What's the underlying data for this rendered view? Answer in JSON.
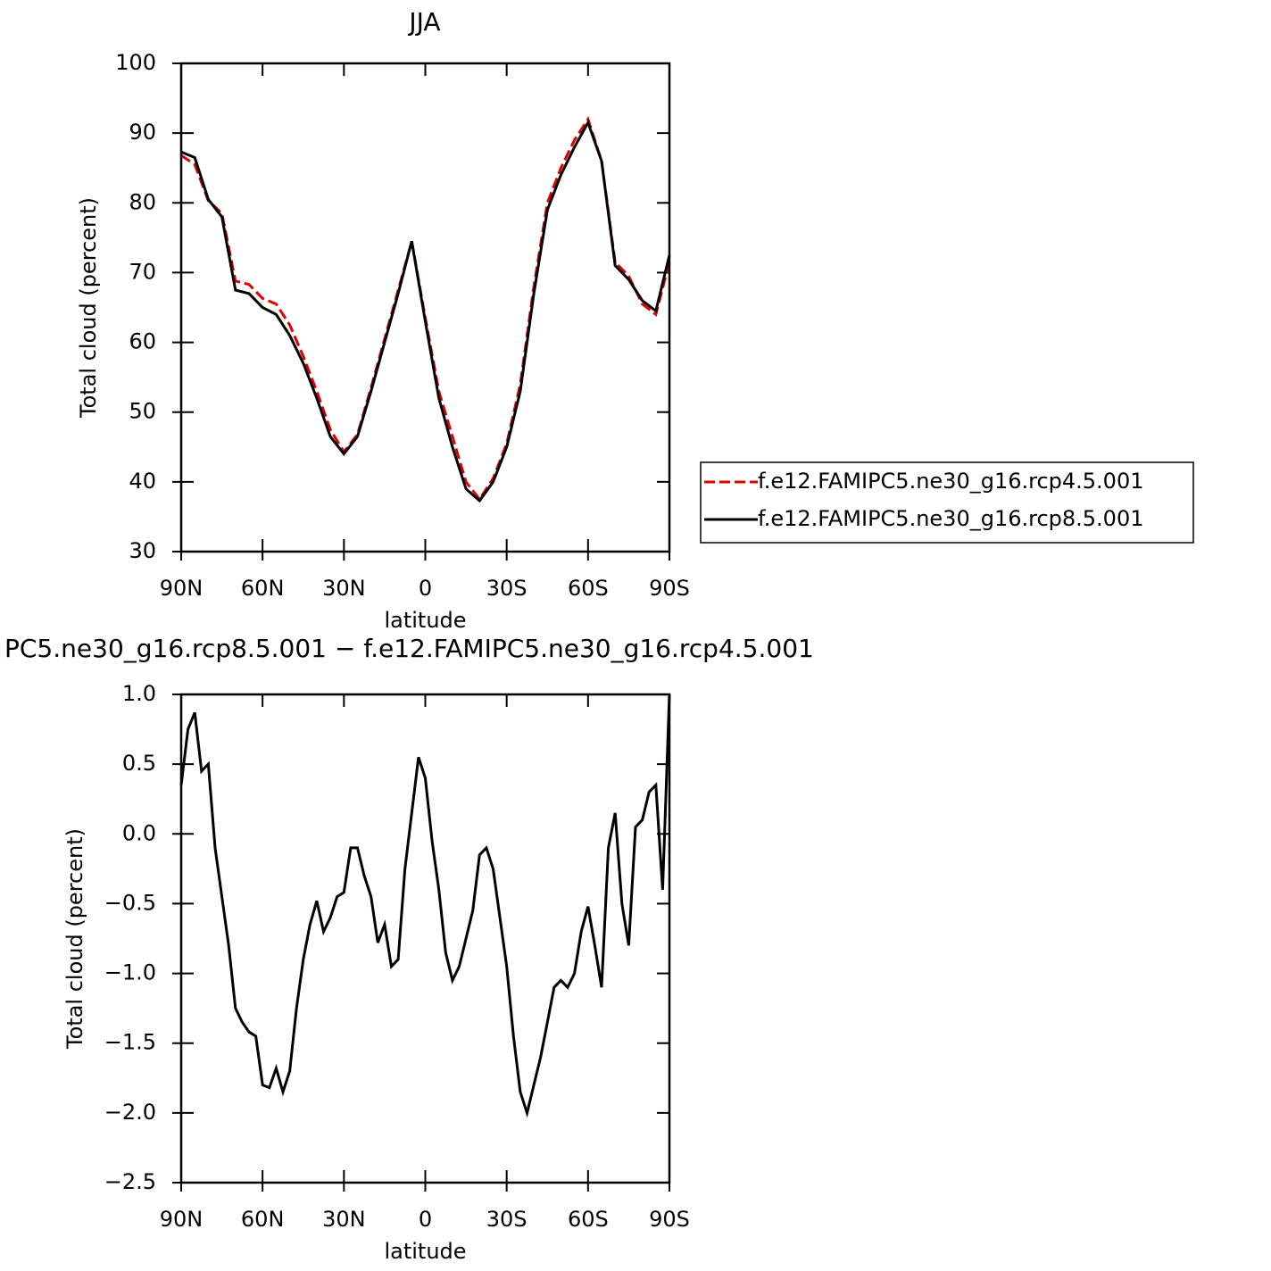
{
  "chart_data": [
    {
      "type": "line",
      "title": "JJA",
      "xlabel": "latitude",
      "ylabel": "Total cloud (percent)",
      "x": [
        90,
        85,
        80,
        75,
        70,
        65,
        60,
        55,
        50,
        45,
        40,
        35,
        30,
        25,
        20,
        15,
        10,
        5,
        0,
        -5,
        -10,
        -15,
        -20,
        -25,
        -30,
        -35,
        -40,
        -45,
        -50,
        -55,
        -60,
        -65,
        -70,
        -75,
        -80,
        -85,
        -90
      ],
      "series": [
        {
          "name": "f.e12.FAMIPC5.ne30_g16.rcp4.5.001",
          "color": "#e00000",
          "dash": true,
          "values": [
            86.8,
            85.5,
            80.3,
            78.5,
            68.8,
            68.3,
            66.3,
            65.5,
            62.5,
            58,
            53,
            47.5,
            44.3,
            46.8,
            53.5,
            60.5,
            67.5,
            74.5,
            63.5,
            53,
            46.5,
            40,
            37.5,
            40.5,
            45.5,
            54,
            68,
            80,
            85,
            89,
            92,
            86,
            71.5,
            69.5,
            65.5,
            64,
            71.5
          ]
        },
        {
          "name": "f.e12.FAMIPC5.ne30_g16.rcp8.5.001",
          "color": "#000000",
          "dash": false,
          "values": [
            87.3,
            86.5,
            80.5,
            78,
            67.5,
            67,
            65,
            64,
            61,
            57,
            52,
            46.5,
            44,
            46.5,
            53,
            60,
            67,
            74.5,
            63,
            52,
            45,
            39,
            37.3,
            40,
            45,
            53,
            67,
            79,
            84,
            88,
            91.5,
            86,
            71,
            69,
            66,
            64.5,
            72.5
          ]
        }
      ],
      "xlim": [
        90,
        -90
      ],
      "xticks": [
        {
          "value": 90,
          "label": "90N"
        },
        {
          "value": 60,
          "label": "60N"
        },
        {
          "value": 30,
          "label": "30N"
        },
        0,
        {
          "value": -30,
          "label": "30S"
        },
        {
          "value": -60,
          "label": "60S"
        },
        {
          "value": -90,
          "label": "90S"
        }
      ],
      "ylim": [
        30,
        100
      ],
      "yticks": [
        30,
        40,
        50,
        60,
        70,
        80,
        90,
        100
      ],
      "legend": "right"
    },
    {
      "type": "line",
      "title": "PC5.ne30_g16.rcp8.5.001 − f.e12.FAMIPC5.ne30_g16.rcp4.5.001",
      "xlabel": "latitude",
      "ylabel": "Total cloud (percent)",
      "x": [
        90,
        87.5,
        85,
        82.5,
        80,
        77.5,
        75,
        72.5,
        70,
        67.5,
        65,
        62.5,
        60,
        57.5,
        55,
        52.5,
        50,
        47.5,
        45,
        42.5,
        40,
        37.5,
        35,
        32.5,
        30,
        27.5,
        25,
        22.5,
        20,
        17.5,
        15,
        12.5,
        10,
        7.5,
        5,
        2.5,
        0,
        -2.5,
        -5,
        -7.5,
        -10,
        -12.5,
        -15,
        -17.5,
        -20,
        -22.5,
        -25,
        -27.5,
        -30,
        -32.5,
        -35,
        -37.5,
        -40,
        -42.5,
        -45,
        -47.5,
        -50,
        -52.5,
        -55,
        -57.5,
        -60,
        -62.5,
        -65,
        -67.5,
        -70,
        -72.5,
        -75,
        -77.5,
        -80,
        -82.5,
        -85,
        -87.5,
        -90
      ],
      "series": [
        {
          "color": "#000000",
          "dash": false,
          "values": [
            0.35,
            0.75,
            0.87,
            0.45,
            0.5,
            -0.1,
            -0.45,
            -0.8,
            -1.25,
            -1.35,
            -1.42,
            -1.45,
            -1.8,
            -1.82,
            -1.68,
            -1.85,
            -1.7,
            -1.25,
            -0.9,
            -0.65,
            -0.48,
            -0.7,
            -0.6,
            -0.45,
            -0.42,
            -0.1,
            -0.1,
            -0.3,
            -0.45,
            -0.78,
            -0.65,
            -0.95,
            -0.9,
            -0.25,
            0.15,
            0.55,
            0.4,
            -0.05,
            -0.4,
            -0.85,
            -1.05,
            -0.95,
            -0.75,
            -0.55,
            -0.15,
            -0.1,
            -0.25,
            -0.6,
            -0.95,
            -1.45,
            -1.85,
            -2.0,
            -1.8,
            -1.6,
            -1.35,
            -1.1,
            -1.05,
            -1.1,
            -1.0,
            -0.7,
            -0.52,
            -0.8,
            -1.1,
            -0.1,
            0.15,
            -0.5,
            -0.8,
            0.05,
            0.1,
            0.3,
            0.35,
            -0.4,
            1.0
          ]
        }
      ],
      "xlim": [
        90,
        -90
      ],
      "xticks": [
        {
          "value": 90,
          "label": "90N"
        },
        {
          "value": 60,
          "label": "60N"
        },
        {
          "value": 30,
          "label": "30N"
        },
        0,
        {
          "value": -30,
          "label": "30S"
        },
        {
          "value": -60,
          "label": "60S"
        },
        {
          "value": -90,
          "label": "90S"
        }
      ],
      "ylim": [
        -2.5,
        1
      ],
      "yticks": [
        {
          "value": -2.5,
          "label": "−2.5"
        },
        {
          "value": -2,
          "label": "−2.0"
        },
        {
          "value": -1.5,
          "label": "−1.5"
        },
        {
          "value": -1,
          "label": "−1.0"
        },
        {
          "value": -0.5,
          "label": "−0.5"
        },
        {
          "value": 0,
          "label": "0.0"
        },
        0.5,
        {
          "value": 1,
          "label": "1.0"
        }
      ]
    }
  ]
}
